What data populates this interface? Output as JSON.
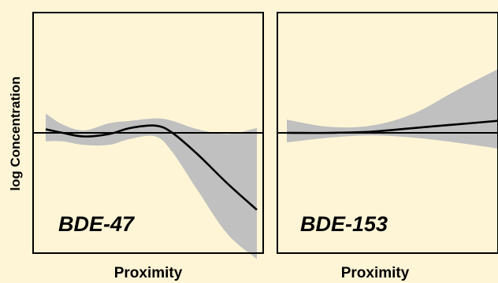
{
  "chart_data": {
    "type": "line",
    "ylabel": "log Concentration",
    "grid": false,
    "panels": [
      {
        "label": "BDE-47",
        "xlabel": "Proximity",
        "xlim": [
          0,
          1
        ],
        "ylim": [
          -1,
          1
        ],
        "reference_line": 0,
        "x": [
          0.0,
          0.08,
          0.18,
          0.3,
          0.4,
          0.52,
          0.6,
          0.72,
          0.86,
          1.0
        ],
        "y": [
          0.03,
          0.0,
          -0.03,
          -0.01,
          0.04,
          0.06,
          0.0,
          -0.18,
          -0.42,
          -0.64
        ],
        "lower": [
          -0.07,
          -0.07,
          -0.1,
          -0.1,
          -0.05,
          -0.03,
          -0.16,
          -0.48,
          -0.84,
          -1.05
        ],
        "upper": [
          0.16,
          0.07,
          0.02,
          0.08,
          0.1,
          0.12,
          0.1,
          0.03,
          -0.01,
          0.04
        ]
      },
      {
        "label": "BDE-153",
        "xlabel": "Proximity",
        "xlim": [
          0,
          1
        ],
        "ylim": [
          -1,
          1
        ],
        "reference_line": 0,
        "x": [
          0.0,
          0.2,
          0.4,
          0.6,
          0.8,
          1.0
        ],
        "y": [
          0.0,
          0.0,
          0.01,
          0.04,
          0.07,
          0.1
        ],
        "lower": [
          -0.08,
          -0.04,
          -0.02,
          -0.04,
          -0.08,
          -0.13
        ],
        "upper": [
          0.11,
          0.05,
          0.06,
          0.16,
          0.35,
          0.53
        ]
      }
    ]
  }
}
